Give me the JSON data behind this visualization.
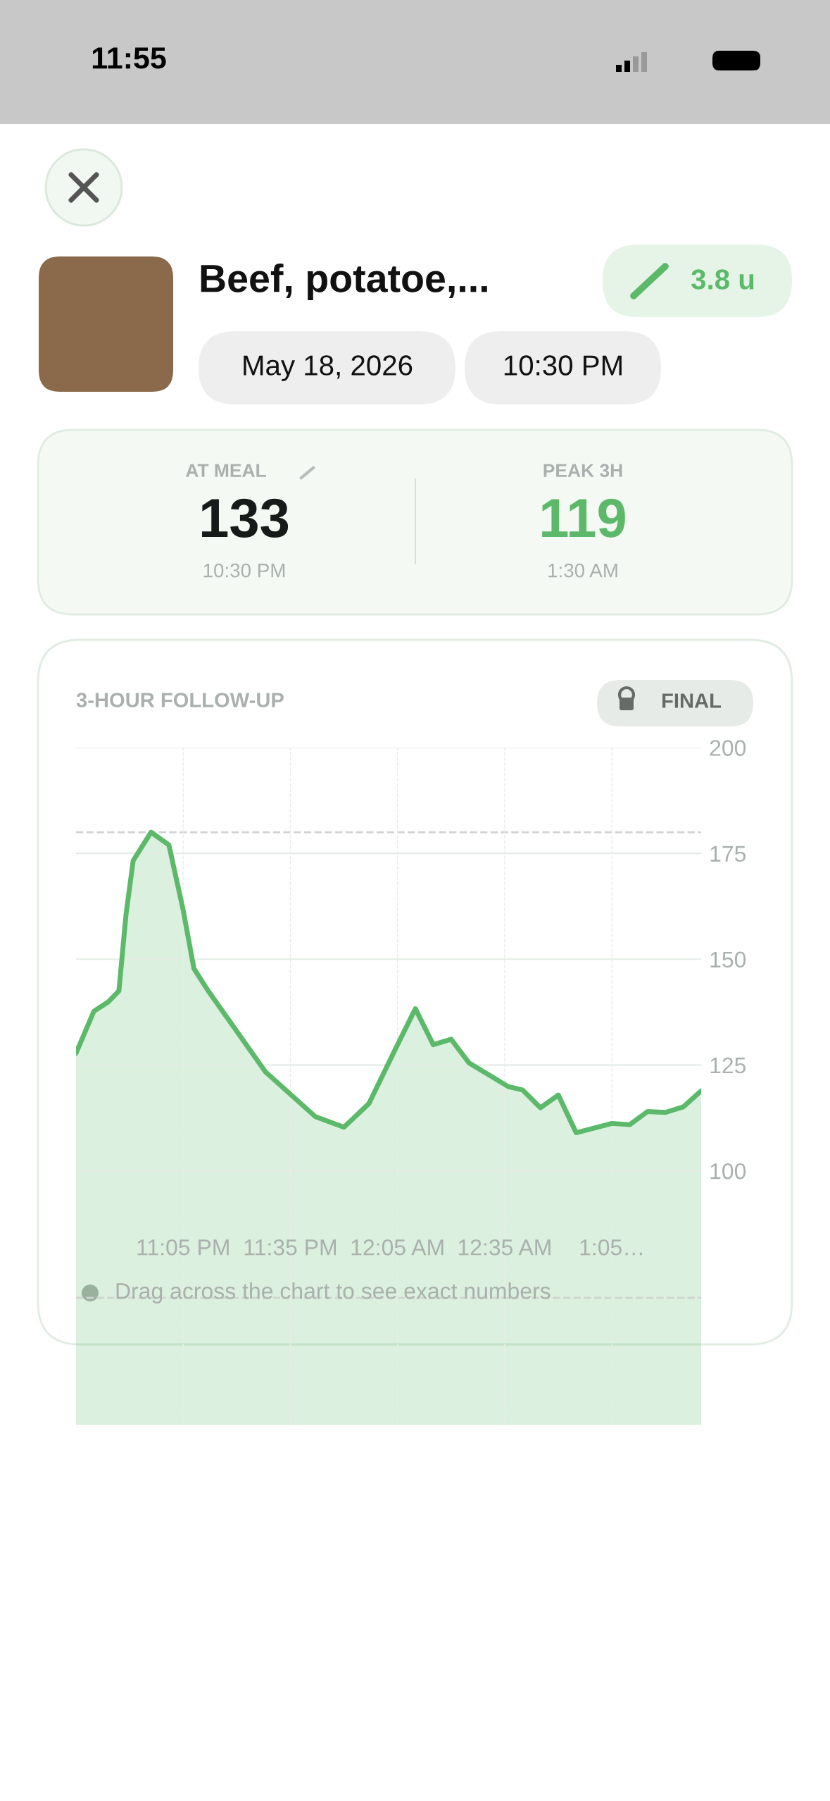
{
  "chart_data": {
    "type": "area",
    "title": "3-HOUR FOLLOW-UP",
    "x": [
      "2026-05-18T22:35",
      "2026-05-18T22:40",
      "2026-05-18T22:44",
      "2026-05-18T22:47",
      "2026-05-18T22:49",
      "2026-05-18T22:51",
      "2026-05-18T22:56",
      "2026-05-18T23:01",
      "2026-05-18T23:05",
      "2026-05-18T23:08",
      "2026-05-18T23:12",
      "2026-05-18T23:28",
      "2026-05-18T23:42",
      "2026-05-18T23:50",
      "2026-05-18T23:57",
      "2026-05-19T00:05",
      "2026-05-19T00:10",
      "2026-05-19T00:15",
      "2026-05-19T00:20",
      "2026-05-19T00:25",
      "2026-05-19T00:36",
      "2026-05-19T00:40",
      "2026-05-19T00:45",
      "2026-05-19T00:50",
      "2026-05-19T00:55",
      "2026-05-19T01:05",
      "2026-05-19T01:10",
      "2026-05-19T01:15",
      "2026-05-19T01:20",
      "2026-05-19T01:25",
      "2026-05-19T01:30"
    ],
    "series": [
      {
        "color": "#5cb96a",
        "values": [
          127.8,
          137.7,
          139.9,
          142.5,
          160.6,
          173.3,
          180.0,
          177.0,
          161.6,
          147.8,
          142.5,
          123.4,
          112.8,
          110.3,
          115.9,
          129.8,
          138.3,
          129.8,
          131.1,
          125.5,
          119.9,
          119.1,
          114.9,
          117.9,
          109.0,
          111.2,
          110.9,
          114.0,
          113.8,
          115.1,
          118.9
        ]
      }
    ],
    "xlim": [
      "2026-05-18T22:35",
      "2026-05-19T01:30"
    ],
    "ylim": [
      40,
      200
    ],
    "xticks": [
      {
        "value": "2026-05-18T23:05",
        "label": "11:05 PM"
      },
      {
        "value": "2026-05-18T23:35",
        "label": "11:35 PM"
      },
      {
        "value": "2026-05-19T00:05",
        "label": "12:05 AM"
      },
      {
        "value": "2026-05-19T00:35",
        "label": "12:35 AM"
      },
      {
        "value": "2026-05-19T01:05",
        "label": "1:05…"
      }
    ],
    "yticks": [
      100,
      125,
      150,
      175,
      200
    ],
    "grid": true,
    "legend": false,
    "line_style": "solid",
    "marker": "none",
    "ref_lines": [
      {
        "axis": "y",
        "value": 180,
        "color": "#d0d4d2",
        "line_style": "dashed"
      },
      {
        "axis": "y",
        "value": 70,
        "color": "#d0d4d2",
        "line_style": "dashed"
      }
    ],
    "annotations": [
      "11:55",
      "Beef, potatoe,...",
      "3.8 u",
      "May 18, 2026",
      "10:30 PM",
      "AT MEAL",
      "133",
      "10:30 PM",
      "PEAK 3H",
      "119",
      "1:30 AM",
      "FINAL",
      "Drag across the chart to see exact numbers"
    ]
  }
}
